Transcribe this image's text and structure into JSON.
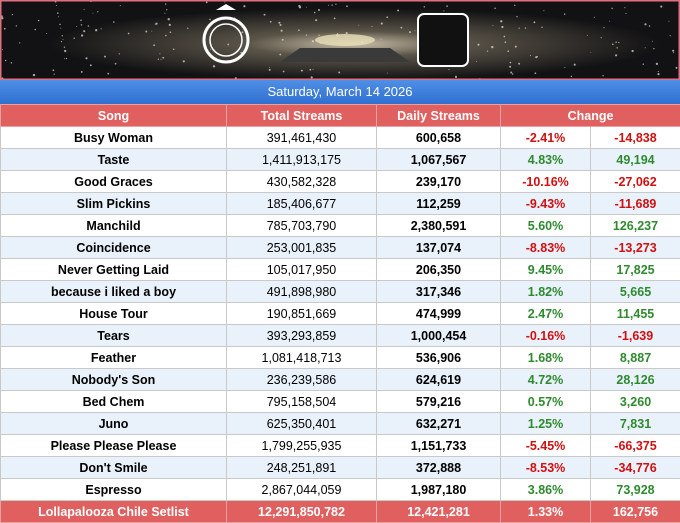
{
  "date": "Saturday, March 14 2026",
  "table": {
    "columns": [
      "Song",
      "Total Streams",
      "Daily Streams",
      "Change"
    ],
    "rows": [
      [
        "Busy Woman",
        "391,461,430",
        "600,658",
        "-2.41%",
        "-14,838"
      ],
      [
        "Taste",
        "1,411,913,175",
        "1,067,567",
        "4.83%",
        "49,194"
      ],
      [
        "Good Graces",
        "430,582,328",
        "239,170",
        "-10.16%",
        "-27,062"
      ],
      [
        "Slim Pickins",
        "185,406,677",
        "112,259",
        "-9.43%",
        "-11,689"
      ],
      [
        "Manchild",
        "785,703,790",
        "2,380,591",
        "5.60%",
        "126,237"
      ],
      [
        "Coincidence",
        "253,001,835",
        "137,074",
        "-8.83%",
        "-13,273"
      ],
      [
        "Never Getting Laid",
        "105,017,950",
        "206,350",
        "9.45%",
        "17,825"
      ],
      [
        "because i liked a boy",
        "491,898,980",
        "317,346",
        "1.82%",
        "5,665"
      ],
      [
        "House Tour",
        "190,851,669",
        "474,999",
        "2.47%",
        "11,455"
      ],
      [
        "Tears",
        "393,293,859",
        "1,000,454",
        "-0.16%",
        "-1,639"
      ],
      [
        "Feather",
        "1,081,418,713",
        "536,906",
        "1.68%",
        "8,887"
      ],
      [
        "Nobody's Son",
        "236,239,586",
        "624,619",
        "4.72%",
        "28,126"
      ],
      [
        "Bed Chem",
        "795,158,504",
        "579,216",
        "0.57%",
        "3,260"
      ],
      [
        "Juno",
        "625,350,401",
        "632,271",
        "1.25%",
        "7,831"
      ],
      [
        "Please Please Please",
        "1,799,255,935",
        "1,151,733",
        "-5.45%",
        "-66,375"
      ],
      [
        "Don't Smile",
        "248,251,891",
        "372,888",
        "-8.53%",
        "-34,776"
      ],
      [
        "Espresso",
        "2,867,044,059",
        "1,987,180",
        "3.86%",
        "73,928"
      ]
    ],
    "footer": [
      "Lollapalooza Chile Setlist",
      "12,291,850,782",
      "12,421,281",
      "1.33%",
      "162,756"
    ]
  }
}
